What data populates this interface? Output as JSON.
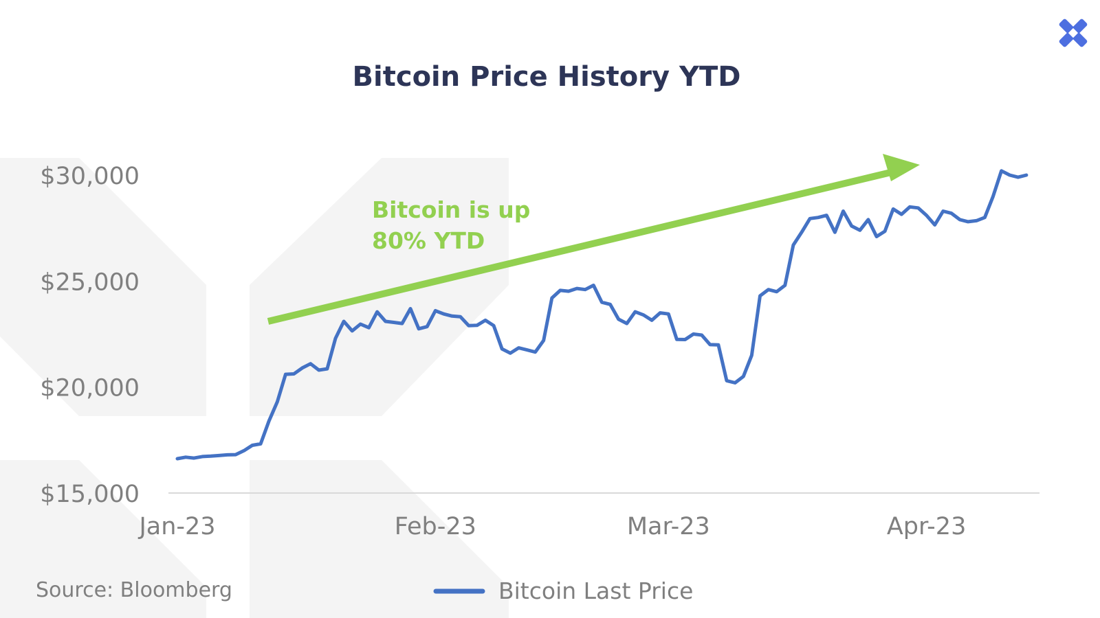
{
  "colors": {
    "series": "#4472c4",
    "arrow": "#92d050",
    "title": "#2d3557",
    "text": "#7f7f7f",
    "axis": "#d9d9d9",
    "watermark": "#f4f4f4",
    "logo": "#4d6fe0"
  },
  "logo": {
    "icon": "x-logo-icon"
  },
  "chart_data": {
    "type": "line",
    "title": "Bitcoin Price History YTD",
    "xlabel": "",
    "ylabel": "",
    "ylim": [
      15000,
      30000
    ],
    "yticks": [
      15000,
      20000,
      25000,
      30000
    ],
    "ytick_labels": [
      "$15,000",
      "$20,000",
      "$25,000",
      "$30,000"
    ],
    "xlim": [
      "2023-01-01",
      "2023-04-14"
    ],
    "xticks": [
      "2023-01-01",
      "2023-02-01",
      "2023-03-01",
      "2023-04-01"
    ],
    "xtick_labels": [
      "Jan-23",
      "Feb-23",
      "Mar-23",
      "Apr-23"
    ],
    "grid": false,
    "legend_position": "bottom",
    "series": [
      {
        "name": "Bitcoin Last Price",
        "x": [
          "2023-01-01",
          "2023-01-02",
          "2023-01-03",
          "2023-01-04",
          "2023-01-05",
          "2023-01-06",
          "2023-01-07",
          "2023-01-08",
          "2023-01-09",
          "2023-01-10",
          "2023-01-11",
          "2023-01-12",
          "2023-01-13",
          "2023-01-14",
          "2023-01-15",
          "2023-01-16",
          "2023-01-17",
          "2023-01-18",
          "2023-01-19",
          "2023-01-20",
          "2023-01-21",
          "2023-01-22",
          "2023-01-23",
          "2023-01-24",
          "2023-01-25",
          "2023-01-26",
          "2023-01-27",
          "2023-01-28",
          "2023-01-29",
          "2023-01-30",
          "2023-01-31",
          "2023-02-01",
          "2023-02-02",
          "2023-02-03",
          "2023-02-04",
          "2023-02-05",
          "2023-02-06",
          "2023-02-07",
          "2023-02-08",
          "2023-02-09",
          "2023-02-10",
          "2023-02-11",
          "2023-02-12",
          "2023-02-13",
          "2023-02-14",
          "2023-02-15",
          "2023-02-16",
          "2023-02-17",
          "2023-02-18",
          "2023-02-19",
          "2023-02-20",
          "2023-02-21",
          "2023-02-22",
          "2023-02-23",
          "2023-02-24",
          "2023-02-25",
          "2023-02-26",
          "2023-02-27",
          "2023-02-28",
          "2023-03-01",
          "2023-03-02",
          "2023-03-03",
          "2023-03-04",
          "2023-03-05",
          "2023-03-06",
          "2023-03-07",
          "2023-03-08",
          "2023-03-09",
          "2023-03-10",
          "2023-03-11",
          "2023-03-12",
          "2023-03-13",
          "2023-03-14",
          "2023-03-15",
          "2023-03-16",
          "2023-03-17",
          "2023-03-18",
          "2023-03-19",
          "2023-03-20",
          "2023-03-21",
          "2023-03-22",
          "2023-03-23",
          "2023-03-24",
          "2023-03-25",
          "2023-03-26",
          "2023-03-27",
          "2023-03-28",
          "2023-03-29",
          "2023-03-30",
          "2023-03-31",
          "2023-04-01",
          "2023-04-02",
          "2023-04-03",
          "2023-04-04",
          "2023-04-05",
          "2023-04-06",
          "2023-04-07",
          "2023-04-08",
          "2023-04-09",
          "2023-04-10",
          "2023-04-11",
          "2023-04-12",
          "2023-04-13"
        ],
        "values": [
          16620,
          16690,
          16650,
          16720,
          16740,
          16770,
          16800,
          16810,
          17000,
          17250,
          17320,
          18400,
          19300,
          20600,
          20620,
          20900,
          21100,
          20800,
          20860,
          22300,
          23100,
          22650,
          22970,
          22800,
          23550,
          23100,
          23050,
          23000,
          23700,
          22750,
          22850,
          23600,
          23450,
          23350,
          23320,
          22900,
          22910,
          23150,
          22900,
          21800,
          21600,
          21850,
          21750,
          21650,
          22200,
          24200,
          24560,
          24520,
          24650,
          24600,
          24800,
          24000,
          23900,
          23200,
          23000,
          23550,
          23400,
          23150,
          23500,
          23450,
          22250,
          22240,
          22500,
          22450,
          22000,
          21990,
          20300,
          20200,
          20500,
          21500,
          24300,
          24600,
          24500,
          24800,
          26700,
          27300,
          27950,
          28000,
          28100,
          27300,
          28300,
          27600,
          27400,
          27900,
          27100,
          27350,
          28400,
          28150,
          28500,
          28450,
          28100,
          27650,
          28300,
          28200,
          27900,
          27800,
          27850,
          28000,
          29000,
          30200,
          30000,
          29900,
          30000
        ]
      }
    ],
    "annotations": [
      {
        "text_lines": [
          "Bitcoin is up",
          "80% YTD"
        ],
        "shape": "arrow",
        "direction": "up-right"
      }
    ],
    "source": "Source: Bloomberg"
  }
}
